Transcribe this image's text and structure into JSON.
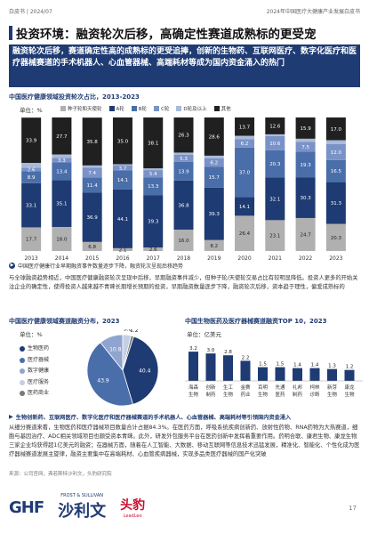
{
  "header": {
    "left": "白皮书 | 2024/07",
    "right": "2024年中国医疗大健康产业发展白皮书"
  },
  "title": "投资环境：融资轮次后移，高确定性赛道成熟标的更受宠",
  "intro": "融资轮次后移，赛道确定性高的成熟标的更受追捧，创新的生物药、互联网医疗、数字化医疗和医疗器械赛道的手术机器人、心血管器械、高端耗材等成为国内资金涌入的热门",
  "chart1": {
    "title": "中国医疗健康领域投资轮次占比，2013-2023",
    "unit": "单位：%"
  },
  "chart_data": [
    {
      "type": "bar",
      "title": "中国医疗健康领域投资轮次占比，2013-2023",
      "ylabel": "单位：%",
      "categories": [
        "2013",
        "2014",
        "2015",
        "2016",
        "2017",
        "2018",
        "2019",
        "2020",
        "2021",
        "2022",
        "2023"
      ],
      "series": [
        {
          "name": "种子轮和天使轮",
          "color": "#b0b0b0",
          "values": [
            17.7,
            18.0,
            6.8,
            2.1,
            2.6,
            16.0,
            8.2,
            26.4,
            23.1,
            24.7,
            20.3
          ],
          "labels": [
            "17.7",
            "18.0",
            "6.8",
            "2.1",
            "2.6",
            "16.0",
            "8.2",
            "26.4",
            "23.1",
            "24.7",
            "20.3"
          ]
        },
        {
          "name": "A轮",
          "color": "#1f3b73",
          "values": [
            33.1,
            35.1,
            36.9,
            44.1,
            39.3,
            36.8,
            39.3,
            14.1,
            32.1,
            30.3,
            31.3
          ],
          "labels": [
            "33.1",
            "35.1",
            "36.9",
            "44.1",
            "39.3",
            "36.8",
            "39.3",
            "14.1",
            "32.1",
            "30.3",
            "31.3"
          ]
        },
        {
          "name": "B轮",
          "color": "#4a6ea9",
          "values": [
            8.9,
            13.4,
            11.4,
            14.1,
            13.3,
            13.9,
            15.7,
            37.0,
            20.3,
            19.3,
            16.5
          ],
          "labels": [
            "8.9",
            "13.4",
            "11.4",
            "14.1",
            "13.3",
            "13.9",
            "15.7",
            "37.0",
            "20.3",
            "19.3",
            "16.5"
          ]
        },
        {
          "name": "C轮",
          "color": "#7a92c7",
          "values": [
            2.6,
            3.3,
            7.4,
            3.7,
            5.4,
            5.3,
            6.2,
            6.2,
            10.6,
            7.5,
            12.0
          ],
          "labels": [
            "2.6",
            "3.3",
            "7.4",
            "3.7",
            "5.4",
            "5.3",
            "6.2",
            "6.2",
            "10.6",
            "7.5",
            "12.0"
          ]
        },
        {
          "name": "D轮及以上",
          "color": "#a9bad9",
          "values": [
            3.7,
            2.5,
            1.6,
            1.0,
            1.3,
            1.7,
            2.0,
            2.6,
            1.3,
            2.3,
            2.9
          ],
          "labels": [
            "",
            "",
            "",
            "",
            "",
            "",
            "",
            "",
            "",
            "",
            ""
          ]
        },
        {
          "name": "其他",
          "color": "#202020",
          "values": [
            33.9,
            27.7,
            35.8,
            35.0,
            38.1,
            26.3,
            28.6,
            13.7,
            12.6,
            15.9,
            17.0
          ],
          "labels": [
            "33.9",
            "27.7",
            "35.8",
            "35.0",
            "38.1",
            "26.3",
            "28.6",
            "13.7",
            "12.6",
            "15.9",
            "17.0"
          ]
        }
      ],
      "ylim": [
        0,
        100
      ]
    },
    {
      "type": "pie",
      "title": "中国医疗健康领域赛道融资分布，2023",
      "unit": "单位：%",
      "labels": [
        "生物医药",
        "医疗器械",
        "数字健康",
        "医疗服务",
        "医药商业"
      ],
      "values": [
        40.4,
        43.9,
        10.8,
        3.8,
        1.2
      ],
      "colors": [
        "#1f3b73",
        "#4a6ea9",
        "#8fa5cf",
        "#c4cfe6",
        "#7a7a7a"
      ]
    },
    {
      "type": "bar",
      "title": "中国生物医药及医疗器械赛道融资TOP 10，2023",
      "unit": "单位：亿美元",
      "categories": [
        "海森生物",
        "创新制药",
        "生工生物",
        "金赛药业",
        "百明生物",
        "先通医药",
        "礼邦制药",
        "柯林诊断",
        "新芽生物",
        "康龙生物"
      ],
      "values": [
        3.2,
        3.0,
        2.8,
        2.2,
        1.5,
        1.5,
        1.4,
        1.4,
        1.3,
        1.2
      ],
      "labels": [
        "3.2",
        "3.0",
        "2.8",
        "2.2",
        "1.5",
        "1.5",
        "1.4",
        "1.4",
        "1.3",
        "1.2"
      ]
    }
  ],
  "note1": "中国医疗健康行业早期融资事件数量逐步下降，融资轮次呈现后移趋势",
  "para1": "与全球融资趋势相近，中国医疗健康融资轮次呈现中后移，早期融资事件减少，但种子轮/天使轮交易占比有较明显降低。投资人更多的开始关注企业的确定性，使得投资人越来越不青睐长期增长预期的投资，早期融资数量逐步下降，融资轮次后移，资本趋于理性，偏爱成熟标的",
  "chart2": {
    "title": "中国医疗健康领域赛道融资分布，2023",
    "unit": "单位：%"
  },
  "chart3": {
    "title": "中国生物医药及医疗器械赛道融资TOP 10，2023",
    "unit": "单位：亿美元"
  },
  "note2": "生物创新药、互联网医疗、数字化医疗和医疗器械赛道的手术机器人、心血管器械、高端耗材等引领国内资金涌入",
  "para2": "从细分赛道来看，生物医药和医疗器械项目数量合计占据84.3%。在医药方面，呼吸系统疾病创新药、放射性药物、RNA药物为大热赛道，细胞与基因治疗、ADC相关领域项目也颇受资本青睐。此外，研发外包服务平台在医药创新中发挥着重要作用。药明合联、康君生物、康龙生物三家企业均获得超1亿美元的融资；在器械方面，随着在人工智能、大数据、移动互联网等信息技术迅猛发展，精准化、智能化、个性化成为医疗器械赛道发展主旋律，融资主要集中在高端耗材、心血管疾病器械，实现多品类医疗器械的国产化突破",
  "source": "来源：公司官网，弗若斯特沙利文，头豹研究院",
  "logos": {
    "ghf": "GHF",
    "fs": "沙利文",
    "fs_en": "FROST & SULLIVAN",
    "ll": "头豹",
    "ll_en": "LeadLeo"
  },
  "page": "17"
}
